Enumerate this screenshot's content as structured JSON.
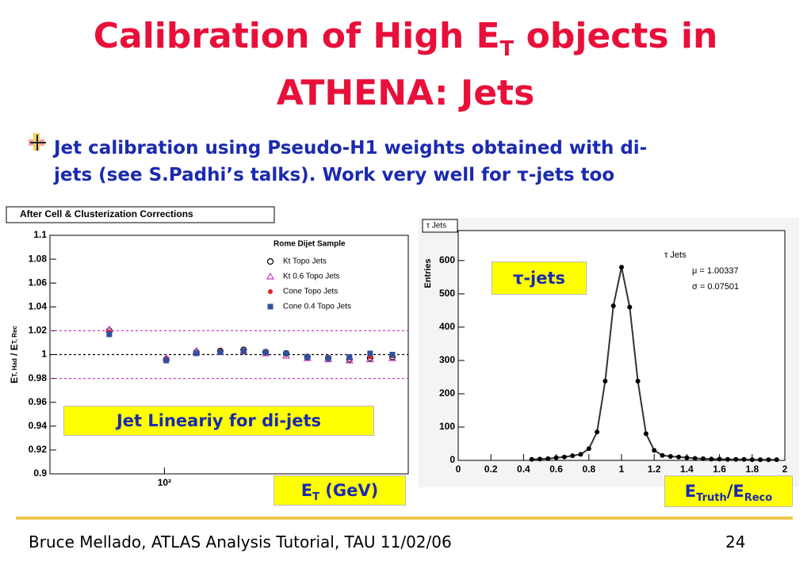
{
  "title": {
    "start": "Calibration of High E",
    "sub": "T",
    "end": " objects in",
    "line2": "ATHENA: Jets"
  },
  "bullet": {
    "line1": "Jet calibration using Pseudo-H1 weights obtained with di-",
    "line2": "jets (see S.Padhi’s talks). Work very well for τ-jets too"
  },
  "footer": {
    "text": "Bruce Mellado, ATLAS Analysis Tutorial, TAU 11/02/06",
    "page": "24"
  },
  "chart_data": [
    {
      "type": "scatter",
      "title": "After Cell & Clusterization Corrections",
      "log_x": true,
      "ylabel": {
        "a": "E",
        "a_sub": "T, Had",
        "b": " / E",
        "b_sub": "T, Rec"
      },
      "xlabel": {
        "main": "E",
        "sub": "T",
        "unit": " (GeV)"
      },
      "annotation": "Jet Lineariy for di-jets",
      "legend_title": "Rome Dijet Sample",
      "xlim": [
        30,
        1300
      ],
      "xticks": [
        {
          "value": 100,
          "label": "10²"
        }
      ],
      "ylim": [
        0.9,
        1.1
      ],
      "yticks": [
        1.1,
        1.08,
        1.06,
        1.04,
        1.02,
        1,
        0.98,
        0.96,
        0.94,
        0.92,
        0.9
      ],
      "hlines": [
        {
          "value": 1.02,
          "color": "#c040c0"
        },
        {
          "value": 1,
          "color": "#000000"
        },
        {
          "value": 0.98,
          "color": "#c040c0"
        }
      ],
      "x": [
        56,
        102,
        140,
        180,
        230,
        290,
        360,
        450,
        560,
        700,
        870,
        1100
      ],
      "series": [
        {
          "name": "Kt Topo Jets",
          "color": "#000000",
          "marker": "circle-open",
          "values": [
            1.02,
            0.996,
            1.002,
            1.003,
            1.004,
            1.002,
            1.001,
            0.998,
            0.997,
            0.996,
            0.997,
            0.998
          ]
        },
        {
          "name": "Kt 0.6 Topo Jets",
          "color": "#c040c0",
          "marker": "triangle-open",
          "values": [
            1.021,
            0.997,
            1.003,
            1.002,
            1.003,
            1.001,
            0.999,
            0.997,
            0.996,
            0.995,
            0.996,
            0.997
          ]
        },
        {
          "name": "Cone Topo Jets",
          "color": "#e02020",
          "marker": "circle",
          "values": [
            1.019,
            0.996,
            1.001,
            1.003,
            1.002,
            1.003,
            1.0,
            0.999,
            0.998,
            0.997,
            0.998,
            0.999
          ]
        },
        {
          "name": "Cone 0.4 Topo Jets",
          "color": "#3050a0",
          "marker": "square",
          "values": [
            1.017,
            0.995,
            1.001,
            1.002,
            1.003,
            1.002,
            1.001,
            0.998,
            0.997,
            0.998,
            1.001,
            1.0
          ]
        }
      ]
    },
    {
      "type": "scatter",
      "title": "τ Jets",
      "ylabel": "Entries",
      "xlabel": {
        "a": "E",
        "a_sub": "Truth",
        "b": "/E",
        "b_sub": "Reco"
      },
      "annotation": "τ-jets",
      "stats": [
        "τ Jets",
        "μ = 1.00337",
        "σ = 0.07501"
      ],
      "xlim": [
        0,
        2
      ],
      "xticks": [
        0,
        0.2,
        0.4,
        0.6,
        0.8,
        1,
        1.2,
        1.4,
        1.6,
        1.8,
        2
      ],
      "ylim": [
        0,
        690
      ],
      "yticks": [
        0,
        100,
        200,
        300,
        400,
        500,
        600
      ],
      "x": [
        0.45,
        0.5,
        0.55,
        0.6,
        0.65,
        0.7,
        0.75,
        0.8,
        0.85,
        0.9,
        0.95,
        1.0,
        1.05,
        1.1,
        1.15,
        1.2,
        1.25,
        1.3,
        1.35,
        1.4,
        1.45,
        1.5,
        1.55,
        1.6,
        1.65,
        1.7,
        1.75,
        1.8,
        1.85,
        1.9,
        1.95
      ],
      "series": [
        {
          "name": "τ Jets",
          "color": "#000000",
          "marker": "circle",
          "values": [
            3,
            4,
            5,
            8,
            10,
            14,
            18,
            35,
            85,
            238,
            464,
            580,
            460,
            238,
            80,
            30,
            15,
            12,
            10,
            8,
            6,
            5,
            4,
            4,
            3,
            3,
            3,
            2,
            2,
            2,
            2
          ]
        }
      ]
    }
  ]
}
